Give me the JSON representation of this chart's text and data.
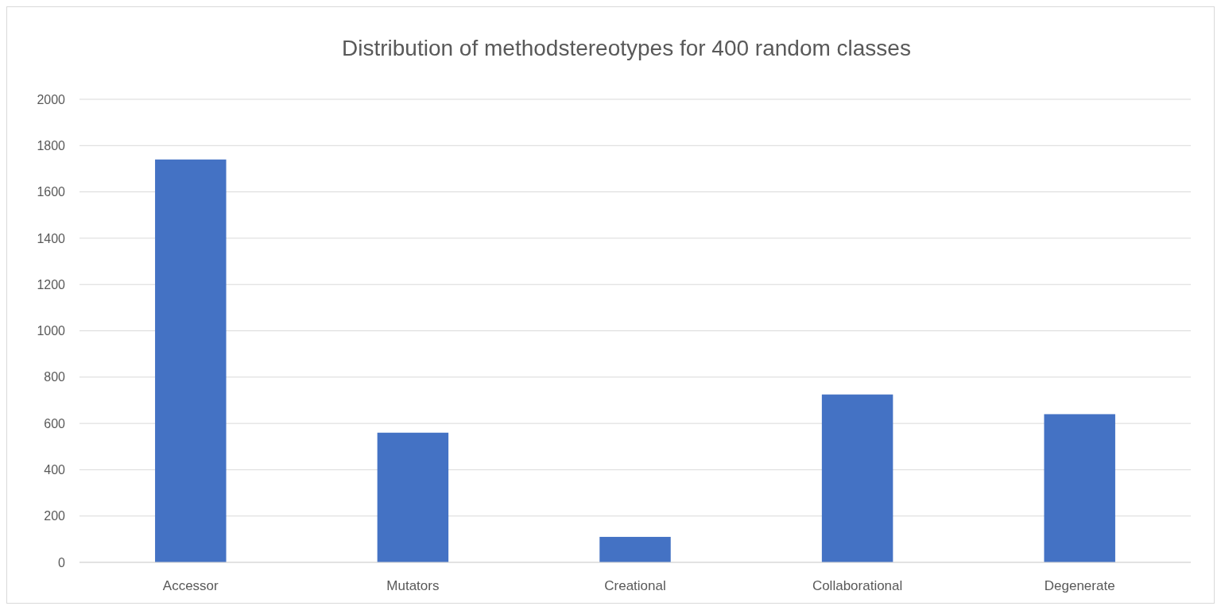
{
  "chart_data": {
    "type": "bar",
    "title": "Distribution of methodstereotypes for 400 random classes",
    "categories": [
      "Accessor",
      "Mutators",
      "Creational",
      "Collaborational",
      "Degenerate"
    ],
    "values": [
      1740,
      560,
      110,
      725,
      640
    ],
    "color": "#4472c4",
    "ylim": [
      0,
      2000
    ],
    "yticks": [
      0,
      200,
      400,
      600,
      800,
      1000,
      1200,
      1400,
      1600,
      1800,
      2000
    ],
    "grid": "y"
  }
}
